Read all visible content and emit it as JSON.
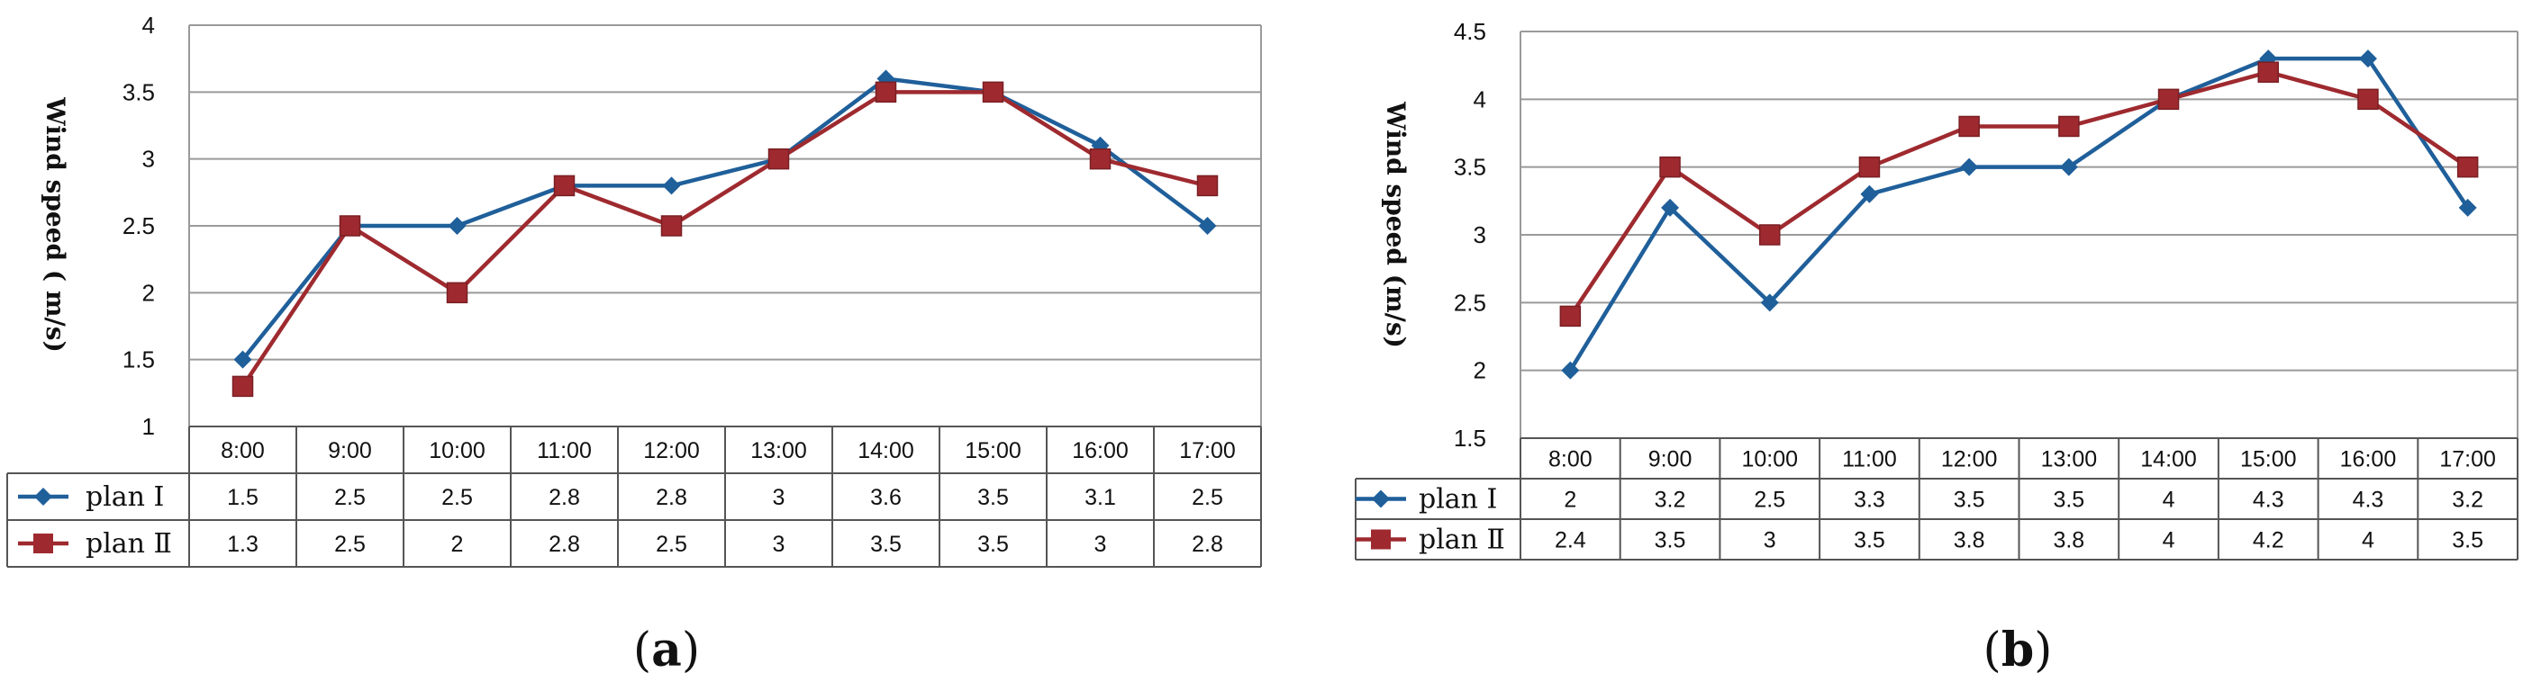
{
  "chart_data": [
    {
      "type": "line",
      "panel_label": "a",
      "categories": [
        "8:00",
        "9:00",
        "10:00",
        "11:00",
        "12:00",
        "13:00",
        "14:00",
        "15:00",
        "16:00",
        "17:00"
      ],
      "series": [
        {
          "name": "plan Ⅰ",
          "values": [
            1.5,
            2.5,
            2.5,
            2.8,
            2.8,
            3,
            3.6,
            3.5,
            3.1,
            2.5
          ],
          "display": [
            "1.5",
            "2.5",
            "2.5",
            "2.8",
            "2.8",
            "3",
            "3.6",
            "3.5",
            "3.1",
            "2.5"
          ],
          "color": "#1F5F9A",
          "marker": "diamond"
        },
        {
          "name": "plan Ⅱ",
          "values": [
            1.3,
            2.5,
            2,
            2.8,
            2.5,
            3,
            3.5,
            3.5,
            3,
            2.8
          ],
          "display": [
            "1.3",
            "2.5",
            "2",
            "2.8",
            "2.5",
            "3",
            "3.5",
            "3.5",
            "3",
            "2.8"
          ],
          "color": "#9E2A2F",
          "marker": "square"
        }
      ],
      "ylabel": "Wind speed ( m/s)",
      "ylim": [
        1,
        4
      ],
      "yticks": [
        "1",
        "1.5",
        "2",
        "2.5",
        "3",
        "3.5",
        "4"
      ],
      "grid": true,
      "legend": "data-table"
    },
    {
      "type": "line",
      "panel_label": "b",
      "categories": [
        "8:00",
        "9:00",
        "10:00",
        "11:00",
        "12:00",
        "13:00",
        "14:00",
        "15:00",
        "16:00",
        "17:00"
      ],
      "series": [
        {
          "name": "plan Ⅰ",
          "values": [
            2,
            3.2,
            2.5,
            3.3,
            3.5,
            3.5,
            4,
            4.3,
            4.3,
            3.2
          ],
          "display": [
            "2",
            "3.2",
            "2.5",
            "3.3",
            "3.5",
            "3.5",
            "4",
            "4.3",
            "4.3",
            "3.2"
          ],
          "color": "#1F5F9A",
          "marker": "diamond"
        },
        {
          "name": "plan Ⅱ",
          "values": [
            2.4,
            3.5,
            3,
            3.5,
            3.8,
            3.8,
            4,
            4.2,
            4,
            3.5
          ],
          "display": [
            "2.4",
            "3.5",
            "3",
            "3.5",
            "3.8",
            "3.8",
            "4",
            "4.2",
            "4",
            "3.5"
          ],
          "color": "#9E2A2F",
          "marker": "square"
        }
      ],
      "ylabel": "Wind speed (m/s)",
      "ylim": [
        1.5,
        4.5
      ],
      "yticks": [
        "1.5",
        "2",
        "2.5",
        "3",
        "3.5",
        "4",
        "4.5"
      ],
      "grid": true,
      "legend": "data-table"
    }
  ]
}
